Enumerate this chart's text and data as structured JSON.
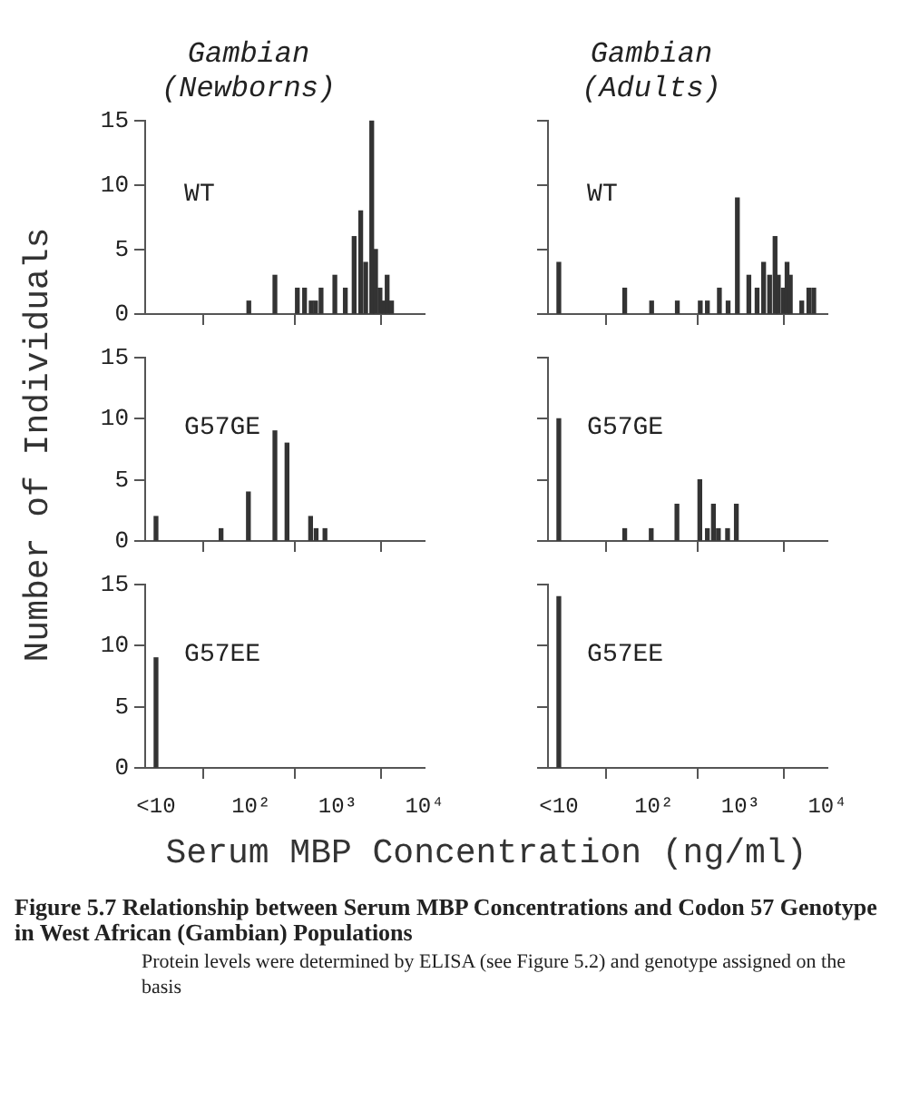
{
  "chart_data": [
    {
      "type": "bar",
      "title": "Gambian\n(Newborns)",
      "subtitle": "WT",
      "log": "x",
      "tick_labels": "y",
      "xlim": [
        6,
        10000
      ],
      "xticks": [
        {
          "value": 8,
          "label": null
        },
        {
          "value": 100,
          "label": null
        },
        {
          "value": 1000,
          "label": null
        },
        {
          "value": 10000,
          "label": null
        }
      ],
      "ylim": [
        0,
        15
      ],
      "yticks": [
        0,
        5,
        10,
        15
      ],
      "color": "#333333",
      "x": [
        94,
        188,
        341,
        413,
        492,
        553,
        640,
        923,
        1219,
        1540,
        1834,
        2093,
        2457,
        2722,
        3060,
        3390,
        3700,
        4160
      ],
      "values": [
        1,
        3,
        2,
        2,
        1,
        1,
        2,
        3,
        2,
        6,
        8,
        4,
        15,
        5,
        2,
        1,
        3,
        1
      ]
    },
    {
      "type": "bar",
      "title": "Gambian\n(Adults)",
      "subtitle": "WT",
      "log": "x",
      "tick_labels": false,
      "xlim": [
        6,
        10000
      ],
      "xticks": [
        {
          "value": 8,
          "label": null
        },
        {
          "value": 100,
          "label": null
        },
        {
          "value": 1000,
          "label": null
        },
        {
          "value": 10000,
          "label": null
        }
      ],
      "ylim": [
        0,
        15
      ],
      "yticks": [
        0,
        5,
        10,
        15
      ],
      "color": "#333333",
      "x": [
        8,
        46,
        94,
        186,
        342,
        413,
        568,
        716,
        916,
        1242,
        1545,
        1838,
        2154,
        2490,
        2715,
        3096,
        3425,
        3735,
        5060,
        6110,
        6960
      ],
      "values": [
        4,
        2,
        1,
        1,
        1,
        1,
        2,
        1,
        9,
        3,
        2,
        4,
        3,
        6,
        3,
        2,
        4,
        3,
        1,
        2,
        2
      ]
    },
    {
      "type": "bar",
      "subtitle": "G57GE",
      "ylabel": "Number of Individuals",
      "log": "x",
      "tick_labels": "y",
      "xlim": [
        6,
        10000
      ],
      "xticks": [
        {
          "value": 8,
          "label": null
        },
        {
          "value": 100,
          "label": null
        },
        {
          "value": 1000,
          "label": null
        },
        {
          "value": 10000,
          "label": null
        }
      ],
      "ylim": [
        0,
        15
      ],
      "yticks": [
        0,
        5,
        10,
        15
      ],
      "color": "#333333",
      "x": [
        8,
        45,
        93,
        188,
        259,
        485,
        561,
        710
      ],
      "values": [
        2,
        1,
        4,
        9,
        8,
        2,
        1,
        1
      ]
    },
    {
      "type": "bar",
      "subtitle": "G57GE",
      "log": "x",
      "tick_labels": false,
      "xlim": [
        6,
        10000
      ],
      "xticks": [
        {
          "value": 8,
          "label": null
        },
        {
          "value": 100,
          "label": null
        },
        {
          "value": 1000,
          "label": null
        },
        {
          "value": 10000,
          "label": null
        }
      ],
      "ylim": [
        0,
        15
      ],
      "yticks": [
        0,
        5,
        10,
        15
      ],
      "color": "#333333",
      "x": [
        8,
        46,
        93,
        184,
        338,
        413,
        485,
        553,
        706,
        891
      ],
      "values": [
        10,
        1,
        1,
        3,
        5,
        1,
        3,
        1,
        1,
        3
      ]
    },
    {
      "type": "bar",
      "subtitle": "G57EE",
      "xlabel": "Serum MBP Concentration (ng/ml)",
      "log": "x",
      "xlim": [
        6,
        10000
      ],
      "xticks": [
        {
          "value": 8,
          "label": "<10"
        },
        {
          "value": 100,
          "label": "10²"
        },
        {
          "value": 1000,
          "label": "10³"
        },
        {
          "value": 10000,
          "label": "10⁴"
        }
      ],
      "ylim": [
        0,
        15
      ],
      "yticks": [
        0,
        5,
        10,
        15
      ],
      "color": "#333333",
      "x": [
        8
      ],
      "values": [
        9
      ],
      "annotations": [
        "Figure 5.7   Relationship between Serum MBP Concentrations and Codon 57 Genotype in West African (Gambian) Populations",
        "Protein levels were determined by ELISA (see Figure 5.2) and genotype assigned on the basis"
      ]
    },
    {
      "type": "bar",
      "subtitle": "G57EE",
      "log": "x",
      "tick_labels": "x",
      "xlim": [
        6,
        10000
      ],
      "xticks": [
        {
          "value": 8,
          "label": "<10"
        },
        {
          "value": 100,
          "label": "10²"
        },
        {
          "value": 1000,
          "label": "10³"
        },
        {
          "value": 10000,
          "label": "10⁴"
        }
      ],
      "ylim": [
        0,
        15
      ],
      "yticks": [
        0,
        5,
        10,
        15
      ],
      "color": "#333333",
      "x": [
        8
      ],
      "values": [
        14
      ]
    }
  ]
}
